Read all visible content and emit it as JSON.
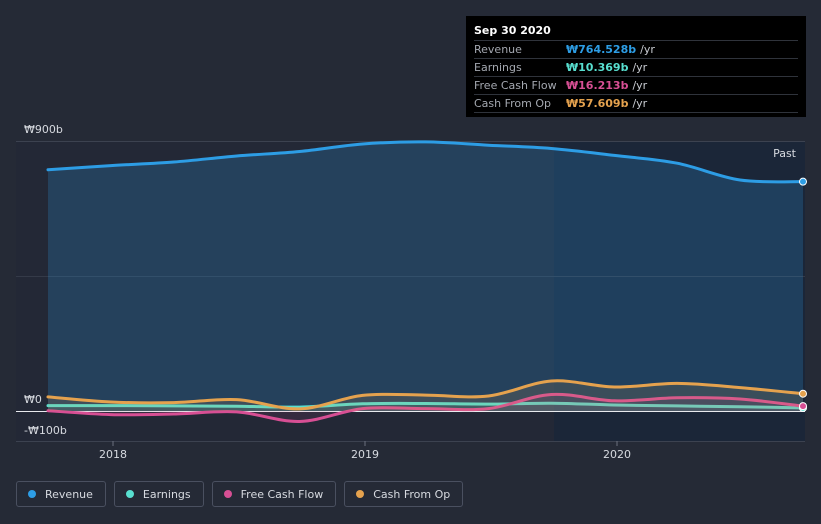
{
  "tooltip": {
    "date": "Sep 30 2020",
    "rows": [
      {
        "label": "Revenue",
        "value": "₩764.528b",
        "unit": "/yr",
        "color": "#2d9de5"
      },
      {
        "label": "Earnings",
        "value": "₩10.369b",
        "unit": "/yr",
        "color": "#58dfd0"
      },
      {
        "label": "Free Cash Flow",
        "value": "₩16.213b",
        "unit": "/yr",
        "color": "#d74f94"
      },
      {
        "label": "Cash From Op",
        "value": "₩57.609b",
        "unit": "/yr",
        "color": "#e5a24e"
      }
    ]
  },
  "past_label": "Past",
  "legend": [
    {
      "label": "Revenue",
      "color": "#2d9de5"
    },
    {
      "label": "Earnings",
      "color": "#58dfd0"
    },
    {
      "label": "Free Cash Flow",
      "color": "#d74f94"
    },
    {
      "label": "Cash From Op",
      "color": "#e5a24e"
    }
  ],
  "chart_data": {
    "type": "area",
    "title": "",
    "xlabel": "",
    "ylabel": "",
    "y_unit": "₩ billions",
    "ylim": [
      -100,
      900
    ],
    "y_ticks": [
      {
        "value": 900,
        "label": "₩900b"
      },
      {
        "value": 0,
        "label": "₩0"
      },
      {
        "value": -100,
        "label": "-₩100b"
      }
    ],
    "x_ticks": [
      {
        "value": 2018.0,
        "label": "2018"
      },
      {
        "value": 2019.0,
        "label": "2019"
      },
      {
        "value": 2020.0,
        "label": "2020"
      }
    ],
    "xlim": [
      2017.75,
      2020.75
    ],
    "highlight_from": 2019.75,
    "x": [
      2017.75,
      2018.0,
      2018.25,
      2018.5,
      2018.75,
      2019.0,
      2019.25,
      2019.5,
      2019.75,
      2020.0,
      2020.25,
      2020.5,
      2020.75
    ],
    "series": [
      {
        "name": "Revenue",
        "color": "#2d9de5",
        "values": [
          804,
          818,
          830,
          850,
          865,
          890,
          897,
          886,
          875,
          852,
          826,
          770,
          764.5
        ]
      },
      {
        "name": "Earnings",
        "color": "#58dfd0",
        "values": [
          18,
          18,
          17,
          16,
          13,
          24,
          25,
          23,
          26,
          20,
          17,
          14,
          10.4
        ]
      },
      {
        "name": "Free Cash Flow",
        "color": "#d74f94",
        "values": [
          1,
          -12,
          -10,
          -3,
          -35,
          8,
          8,
          8,
          55,
          34,
          44,
          40,
          16.2
        ]
      },
      {
        "name": "Cash From Op",
        "color": "#e5a24e",
        "values": [
          47,
          30,
          28,
          38,
          7,
          52,
          53,
          50,
          100,
          80,
          92,
          78,
          57.6
        ]
      }
    ]
  }
}
